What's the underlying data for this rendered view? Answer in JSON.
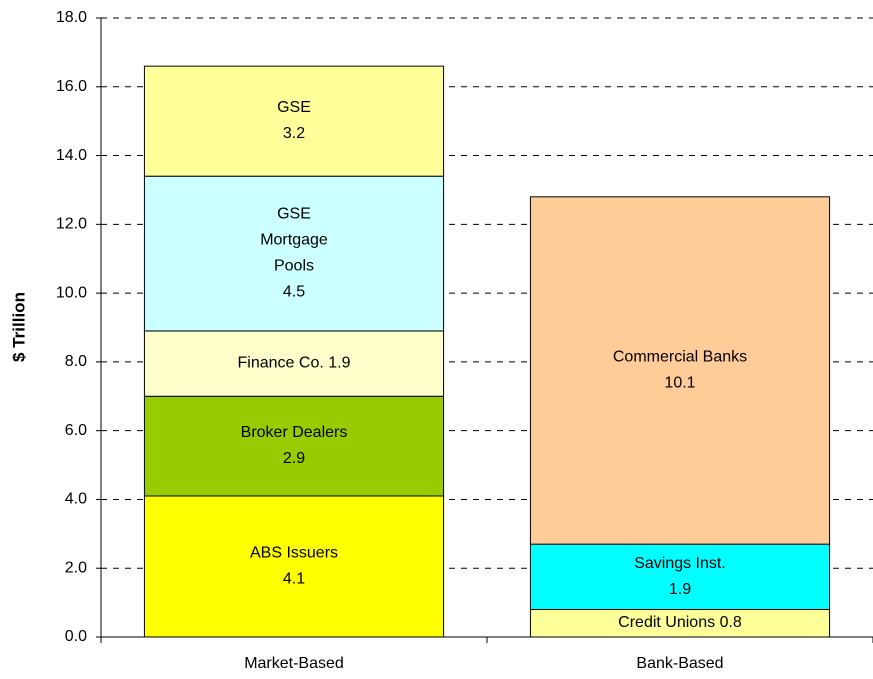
{
  "chart_data": {
    "type": "stacked_bar",
    "y_label": "$ Trillion",
    "categories": [
      "Market-Based",
      "Bank-Based"
    ],
    "series": [
      {
        "name": "ABS Issuers",
        "color": "#ffff00",
        "values": [
          4.1,
          null
        ]
      },
      {
        "name": "Broker Dealers",
        "color": "#99cc00",
        "values": [
          2.9,
          null
        ]
      },
      {
        "name": "Finance Co.",
        "color": "#ffffcc",
        "values": [
          1.9,
          null
        ]
      },
      {
        "name": "GSE Mortgage Pools",
        "color": "#ccffff",
        "values": [
          4.5,
          null
        ]
      },
      {
        "name": "GSE",
        "color": "#ffff99",
        "values": [
          3.2,
          null
        ]
      },
      {
        "name": "Credit Unions",
        "color": "#ffff99",
        "values": [
          null,
          0.8
        ]
      },
      {
        "name": "Savings Inst.",
        "color": "#00ffff",
        "values": [
          null,
          1.9
        ]
      },
      {
        "name": "Commercial Banks",
        "color": "#ffcc99",
        "values": [
          null,
          10.1
        ]
      }
    ],
    "ylim": [
      0,
      18
    ],
    "yticks": [
      {
        "value": 0,
        "label": "0.0"
      },
      {
        "value": 2,
        "label": "2.0"
      },
      {
        "value": 4,
        "label": "4.0"
      },
      {
        "value": 6,
        "label": "6.0"
      },
      {
        "value": 8,
        "label": "8.0"
      },
      {
        "value": 10,
        "label": "10.0"
      },
      {
        "value": 12,
        "label": "12.0"
      },
      {
        "value": 14,
        "label": "14.0"
      },
      {
        "value": 16,
        "label": "16.0"
      },
      {
        "value": 18,
        "label": "18.0"
      }
    ],
    "grid": true
  }
}
